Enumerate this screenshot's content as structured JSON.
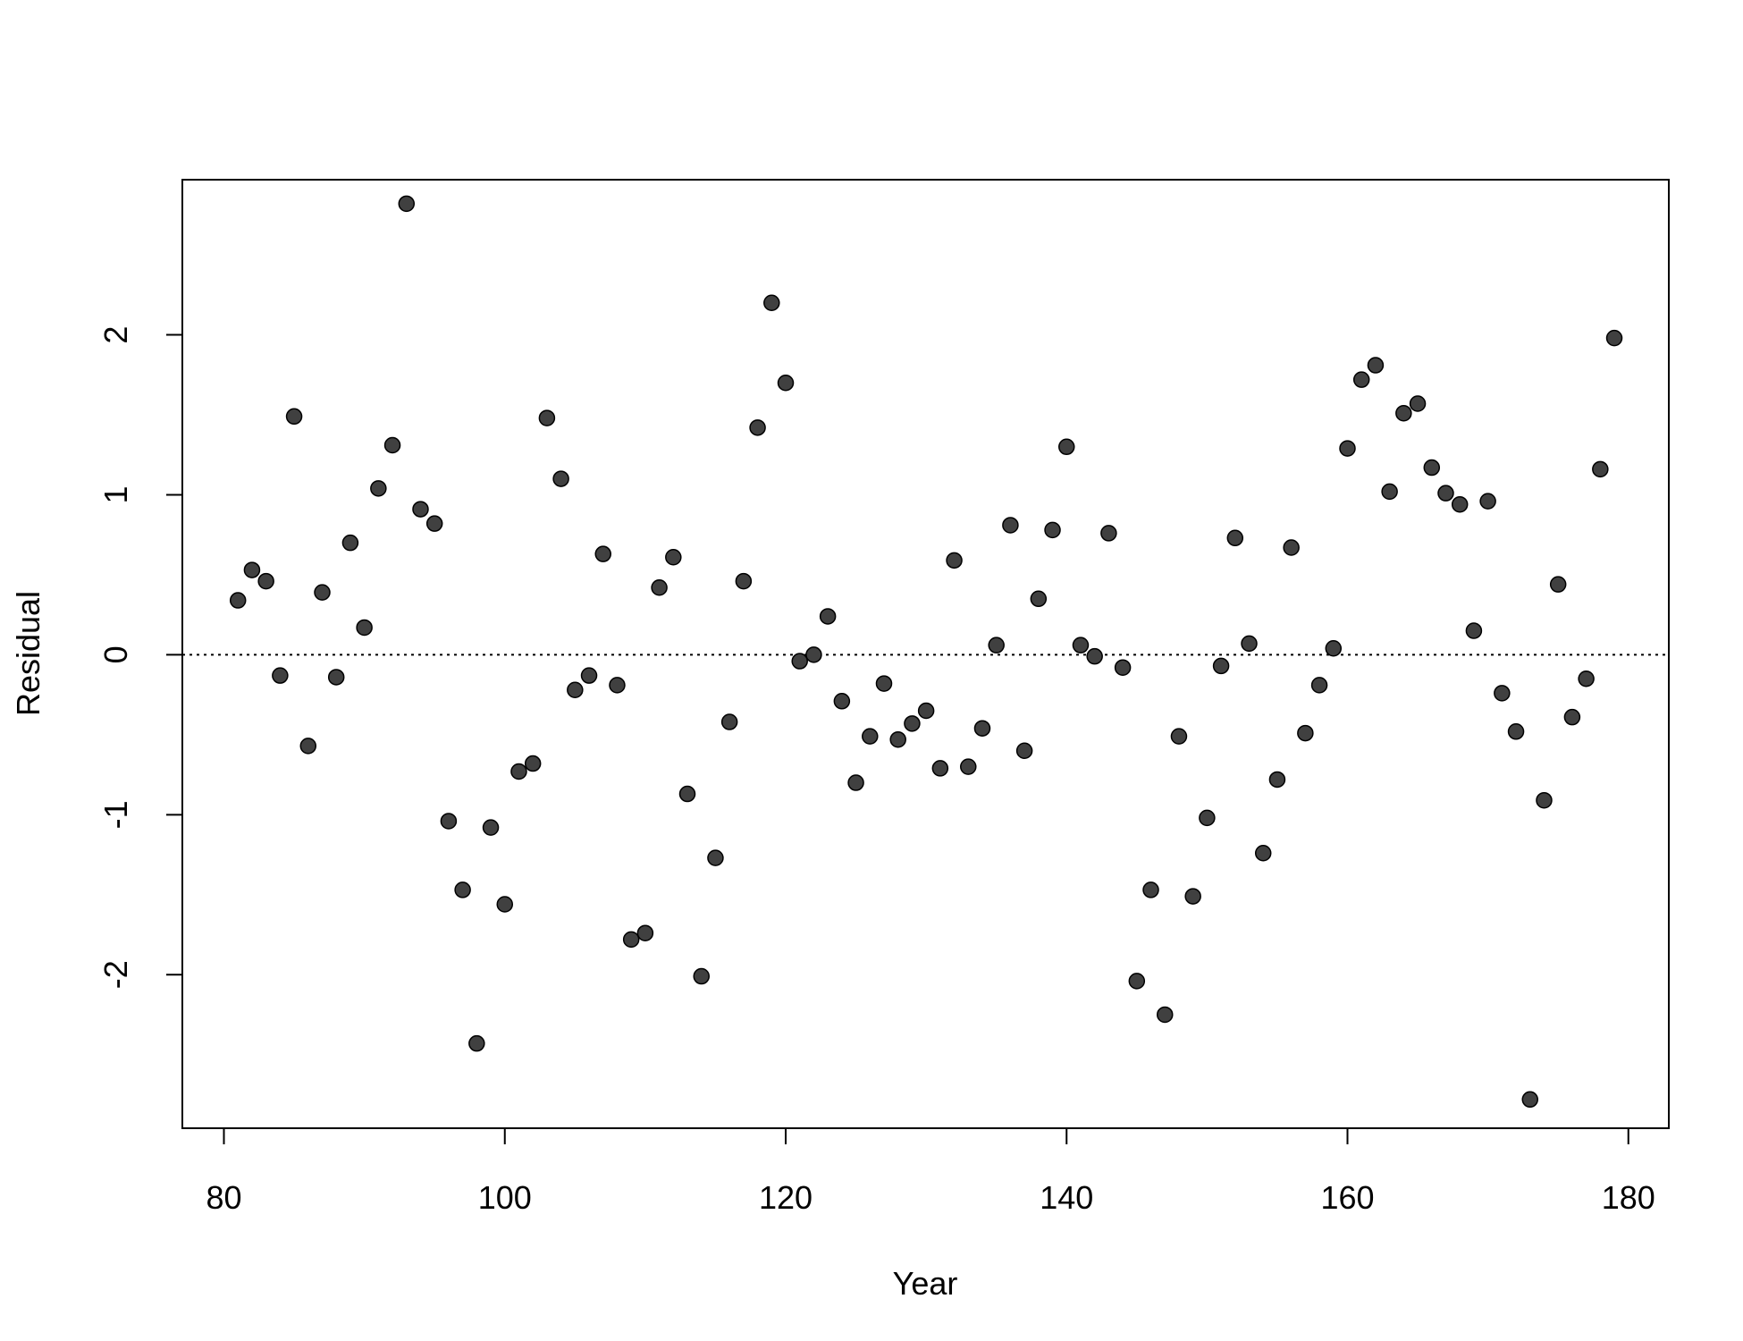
{
  "chart_data": {
    "type": "scatter",
    "x_label": "Year",
    "y_label": "Residual",
    "x": [
      81,
      82,
      83,
      84,
      85,
      86,
      87,
      88,
      89,
      90,
      91,
      92,
      93,
      94,
      95,
      96,
      97,
      98,
      99,
      100,
      101,
      102,
      103,
      104,
      105,
      106,
      107,
      108,
      109,
      110,
      111,
      112,
      113,
      114,
      115,
      116,
      117,
      118,
      119,
      120,
      121,
      122,
      123,
      124,
      125,
      126,
      127,
      128,
      129,
      130,
      131,
      132,
      133,
      134,
      135,
      136,
      137,
      138,
      139,
      140,
      141,
      142,
      143,
      144,
      145,
      146,
      147,
      148,
      149,
      150,
      151,
      152,
      153,
      154,
      155,
      156,
      157,
      158,
      159,
      160,
      161,
      162,
      163,
      164,
      165,
      166,
      167,
      168,
      169,
      170,
      171,
      172,
      173,
      174,
      175,
      176,
      177,
      178,
      179
    ],
    "series": [
      {
        "color": "#404040",
        "values": [
          0.34,
          0.53,
          0.46,
          -0.13,
          1.49,
          -0.57,
          0.39,
          -0.14,
          0.7,
          0.17,
          1.04,
          1.31,
          2.82,
          0.91,
          0.82,
          -1.04,
          -1.47,
          -2.43,
          -1.08,
          -1.56,
          -0.73,
          -0.68,
          1.48,
          1.1,
          -0.22,
          -0.13,
          0.63,
          -0.19,
          -1.78,
          -1.74,
          0.42,
          0.61,
          -0.87,
          -2.01,
          -1.27,
          -0.42,
          0.46,
          1.42,
          2.2,
          1.7,
          -0.04,
          0.0,
          0.24,
          -0.29,
          -0.8,
          -0.51,
          -0.18,
          -0.53,
          -0.43,
          -0.35,
          -0.71,
          0.59,
          -0.7,
          -0.46,
          0.06,
          0.81,
          -0.6,
          0.35,
          0.78,
          1.3,
          0.06,
          -0.01,
          0.76,
          -0.08,
          -2.04,
          -1.47,
          -2.25,
          -0.51,
          -1.51,
          -1.02,
          -0.07,
          0.73,
          0.07,
          -1.24,
          -0.78,
          0.67,
          -0.49,
          -0.19,
          0.04,
          1.29,
          1.72,
          1.81,
          1.02,
          1.51,
          1.57,
          1.17,
          1.01,
          0.94,
          0.15,
          0.96,
          -0.24,
          -0.48,
          -2.78,
          -0.91,
          0.44,
          -0.39,
          -0.15,
          1.16,
          1.98
        ]
      }
    ],
    "hline": 0,
    "xlim": [
      77.04,
      182.88
    ],
    "ylim": [
      -2.96,
      2.97
    ],
    "xticks": [
      80,
      100,
      120,
      140,
      160,
      180
    ],
    "yticks": [
      -2,
      -1,
      0,
      1,
      2
    ]
  }
}
